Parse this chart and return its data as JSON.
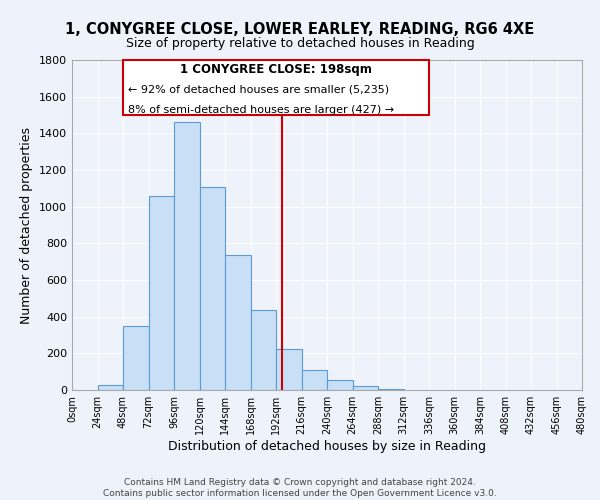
{
  "title": "1, CONYGREE CLOSE, LOWER EARLEY, READING, RG6 4XE",
  "subtitle": "Size of property relative to detached houses in Reading",
  "xlabel": "Distribution of detached houses by size in Reading",
  "ylabel": "Number of detached properties",
  "bar_edges": [
    0,
    24,
    48,
    72,
    96,
    120,
    144,
    168,
    192,
    216,
    240,
    264,
    288,
    312,
    336,
    360,
    384,
    408,
    432,
    456,
    480
  ],
  "bar_heights": [
    0,
    30,
    350,
    1060,
    1460,
    1110,
    735,
    435,
    225,
    110,
    55,
    20,
    5,
    0,
    0,
    0,
    0,
    0,
    0,
    0
  ],
  "bar_color": "#c8dff5",
  "bar_edge_color": "#5b9bd5",
  "property_size": 198,
  "vline_color": "#cc0000",
  "annotation_box_edge_color": "#cc0000",
  "annotation_text_line1": "1 CONYGREE CLOSE: 198sqm",
  "annotation_text_line2": "← 92% of detached houses are smaller (5,235)",
  "annotation_text_line3": "8% of semi-detached houses are larger (427) →",
  "ylim": [
    0,
    1800
  ],
  "xlim": [
    0,
    480
  ],
  "yticks": [
    0,
    200,
    400,
    600,
    800,
    1000,
    1200,
    1400,
    1600,
    1800
  ],
  "xtick_positions": [
    0,
    24,
    48,
    72,
    96,
    120,
    144,
    168,
    192,
    216,
    240,
    264,
    288,
    312,
    336,
    360,
    384,
    408,
    432,
    456,
    480
  ],
  "background_color": "#eef2fa",
  "footer_line1": "Contains HM Land Registry data © Crown copyright and database right 2024.",
  "footer_line2": "Contains public sector information licensed under the Open Government Licence v3.0."
}
